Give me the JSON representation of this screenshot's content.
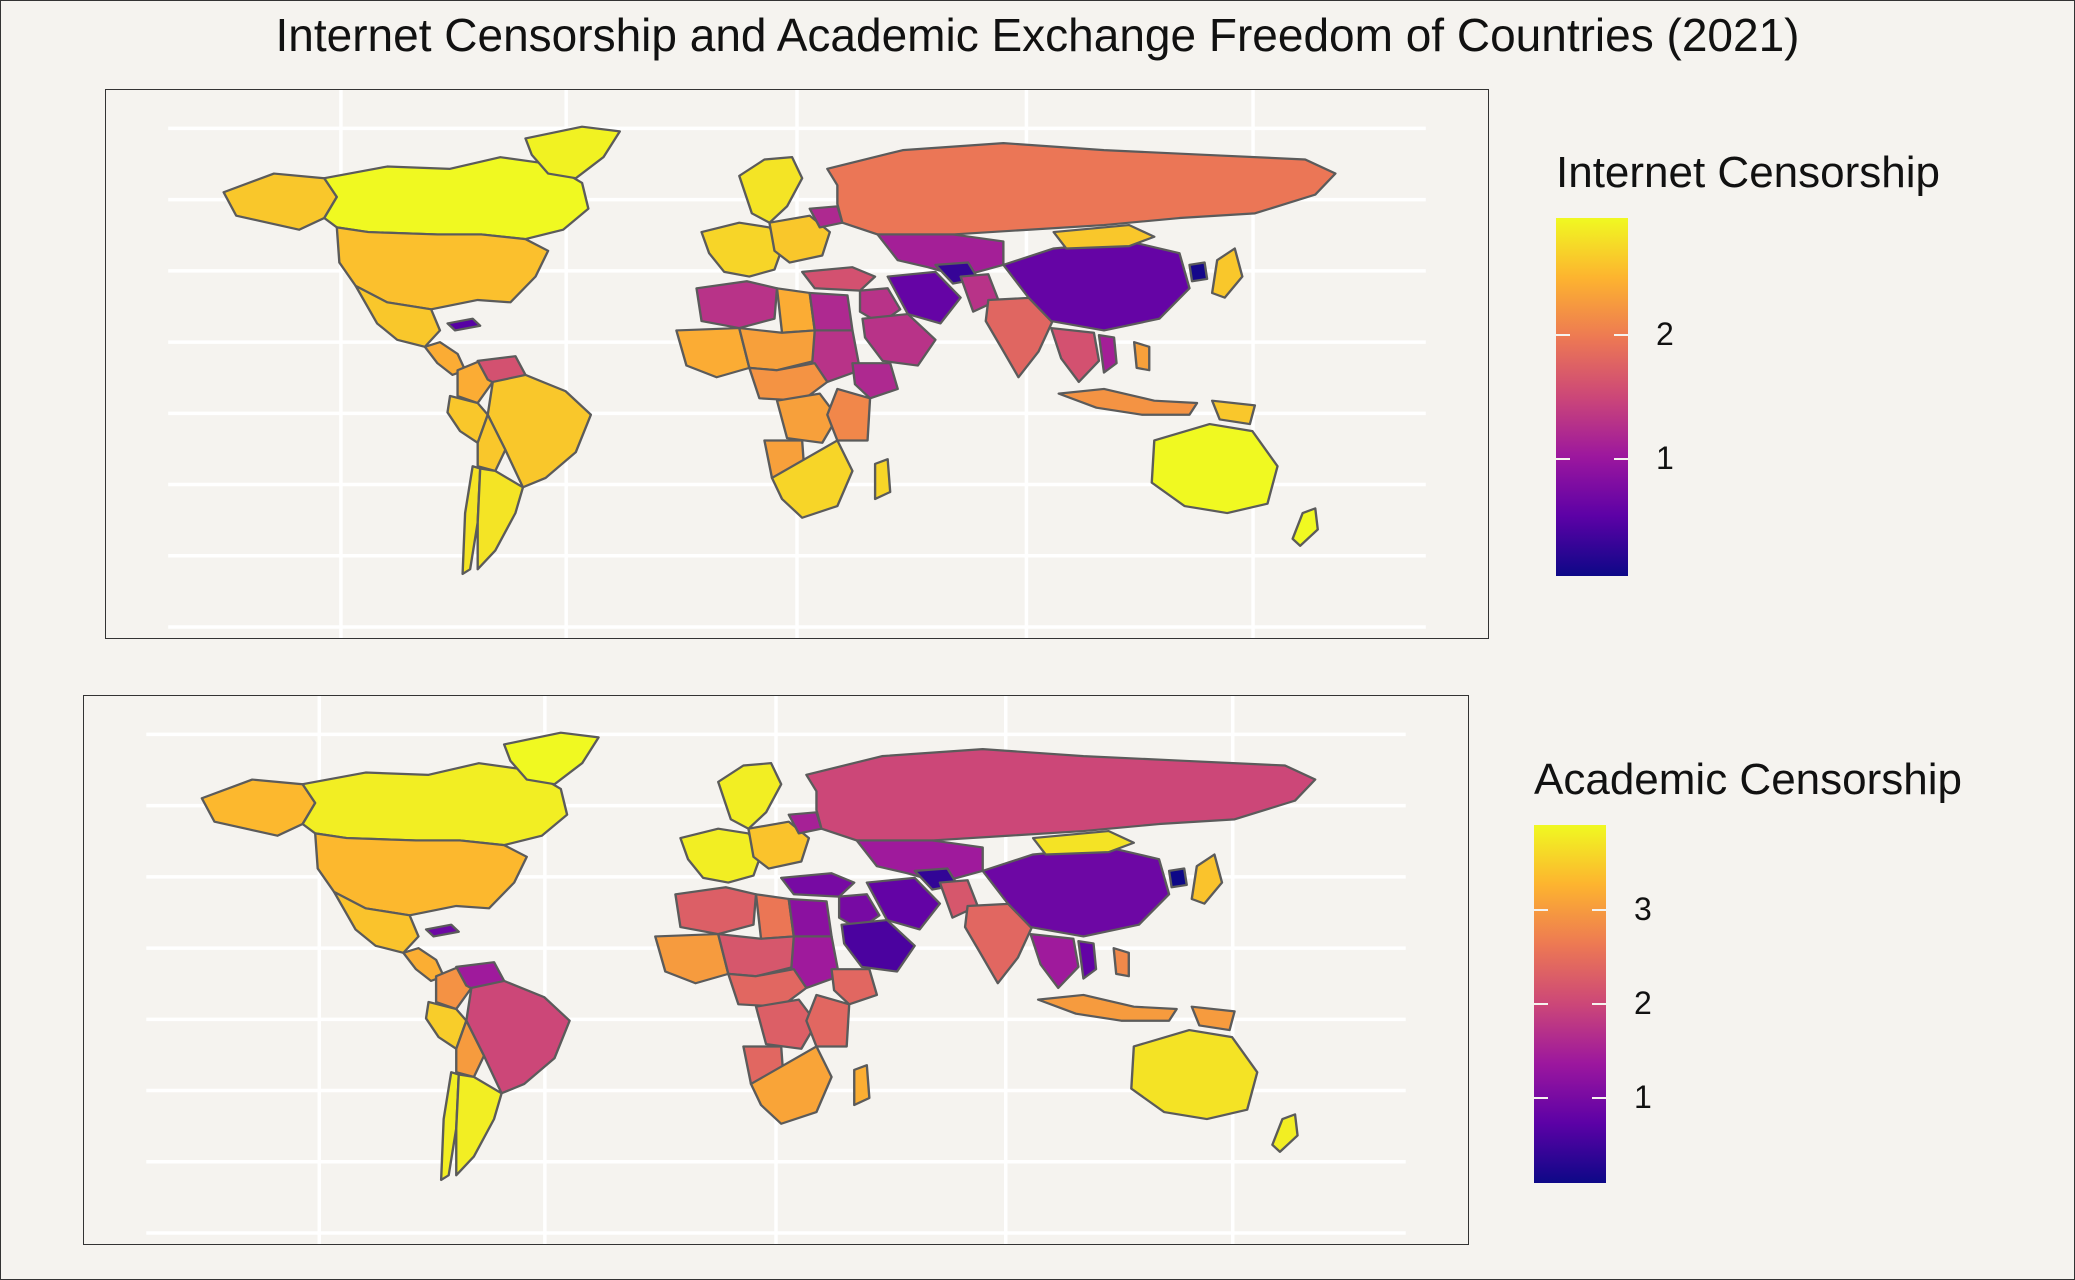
{
  "title": "Internet Censorship and Academic Exchange Freedom of Countries (2021)",
  "colors": {
    "background": "#f5f3ef",
    "border": "#5b5b5b",
    "scale": [
      "#0d0887",
      "#5c01a6",
      "#9c179e",
      "#cc4778",
      "#ed7953",
      "#fdb42f",
      "#f0f921"
    ]
  },
  "maps": [
    {
      "legend_title": "Internet Censorship",
      "ticks": [
        {
          "label": "1",
          "value": 1
        },
        {
          "label": "2",
          "value": 2
        }
      ],
      "range": [
        0.05,
        2.95
      ],
      "regions": {
        "canada": 2.95,
        "usa": 2.55,
        "alaska": 2.6,
        "greenland": 2.9,
        "mexico": 2.6,
        "central_america": 2.4,
        "cuba": 0.5,
        "venezuela": 1.6,
        "colombia": 2.4,
        "brazil": 2.6,
        "peru": 2.6,
        "bolivia": 2.6,
        "argentina": 2.8,
        "chile": 2.8,
        "russia": 1.95,
        "europe_west": 2.7,
        "europe_east": 2.6,
        "scandinavia": 2.8,
        "belarus": 1.2,
        "turkey": 1.6,
        "middle_east": 1.3,
        "saudi_arabia": 1.3,
        "iran": 0.6,
        "central_asia": 1.1,
        "turkmenistan": 0.3,
        "china": 0.6,
        "mongolia": 2.6,
        "korea_north": 0.1,
        "japan": 2.6,
        "india": 1.8,
        "pakistan": 1.3,
        "southeast_asia": 1.6,
        "vietnam": 1.1,
        "indonesia": 2.2,
        "philippines": 2.3,
        "australia": 2.95,
        "new_zealand": 2.95,
        "png": 2.6,
        "north_africa": 1.3,
        "egypt": 1.2,
        "libya": 2.4,
        "west_africa": 2.4,
        "sahel": 2.3,
        "sudan": 1.3,
        "ethiopia": 1.2,
        "east_africa": 2.1,
        "central_africa": 2.2,
        "drc": 2.3,
        "southern_africa": 2.7,
        "angola": 2.3,
        "madagascar": 2.7
      }
    },
    {
      "legend_title": "Academic Censorship",
      "ticks": [
        {
          "label": "1",
          "value": 1
        },
        {
          "label": "2",
          "value": 2
        },
        {
          "label": "3",
          "value": 3
        }
      ],
      "range": [
        0.1,
        3.9
      ],
      "regions": {
        "canada": 3.8,
        "usa": 3.3,
        "alaska": 3.3,
        "greenland": 3.9,
        "mexico": 3.4,
        "central_america": 3.2,
        "cuba": 0.9,
        "venezuela": 1.4,
        "colombia": 2.9,
        "brazil": 2.0,
        "peru": 3.5,
        "bolivia": 3.0,
        "argentina": 3.8,
        "chile": 3.8,
        "russia": 2.0,
        "europe_west": 3.8,
        "europe_east": 3.4,
        "scandinavia": 3.8,
        "belarus": 1.5,
        "turkey": 1.0,
        "middle_east": 1.0,
        "saudi_arabia": 0.6,
        "iran": 0.8,
        "central_asia": 1.4,
        "turkmenistan": 0.4,
        "china": 0.9,
        "mongolia": 3.7,
        "korea_north": 0.1,
        "japan": 3.4,
        "india": 2.4,
        "pakistan": 2.2,
        "southeast_asia": 1.4,
        "vietnam": 0.8,
        "indonesia": 3.0,
        "philippines": 2.8,
        "australia": 3.7,
        "new_zealand": 3.8,
        "png": 3.0,
        "north_africa": 2.3,
        "egypt": 1.2,
        "libya": 2.6,
        "west_africa": 3.0,
        "sahel": 2.2,
        "sudan": 1.4,
        "ethiopia": 2.4,
        "east_africa": 2.4,
        "central_africa": 2.4,
        "drc": 2.3,
        "southern_africa": 3.1,
        "angola": 2.4,
        "madagascar": 3.2
      }
    }
  ]
}
